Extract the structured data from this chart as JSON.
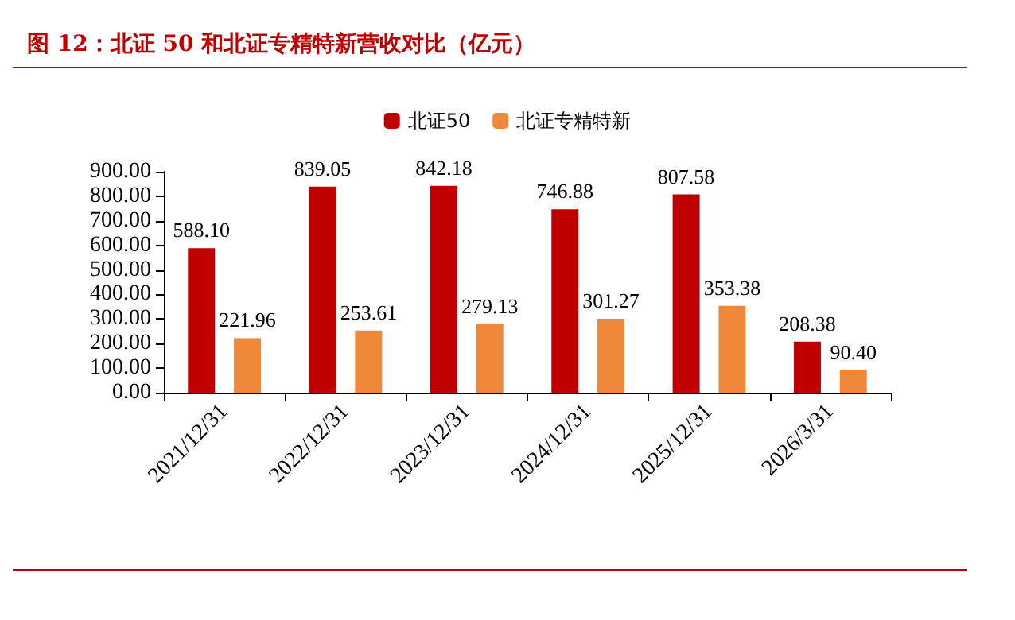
{
  "chart_data": {
    "type": "bar",
    "title": "图 12：北证 50 和北证专精特新营收对比（亿元）",
    "categories": [
      "2021/12/31",
      "2022/12/31",
      "2023/12/31",
      "2024/12/31",
      "2025/12/31",
      "2026/3/31"
    ],
    "series": [
      {
        "name": "北证50",
        "color": "#c00000",
        "values": [
          588.1,
          839.05,
          842.18,
          746.88,
          807.58,
          208.38
        ],
        "value_labels": [
          "588.10",
          "839.05",
          "842.18",
          "746.88",
          "807.58",
          "208.38"
        ]
      },
      {
        "name": "北证专精特新",
        "color": "#f0883a",
        "values": [
          221.96,
          253.61,
          279.13,
          301.27,
          353.38,
          90.4
        ],
        "value_labels": [
          "221.96",
          "253.61",
          "279.13",
          "301.27",
          "353.38",
          "90.40"
        ]
      }
    ],
    "ylim": [
      0,
      900
    ],
    "yticks": [
      {
        "value": 0,
        "label": "0.00"
      },
      {
        "value": 100,
        "label": "100.00"
      },
      {
        "value": 200,
        "label": "200.00"
      },
      {
        "value": 300,
        "label": "300.00"
      },
      {
        "value": 400,
        "label": "400.00"
      },
      {
        "value": 500,
        "label": "500.00"
      },
      {
        "value": 600,
        "label": "600.00"
      },
      {
        "value": 700,
        "label": "700.00"
      },
      {
        "value": 800,
        "label": "800.00"
      },
      {
        "value": 900,
        "label": "900.00"
      }
    ],
    "grid": false,
    "legend": "top"
  }
}
